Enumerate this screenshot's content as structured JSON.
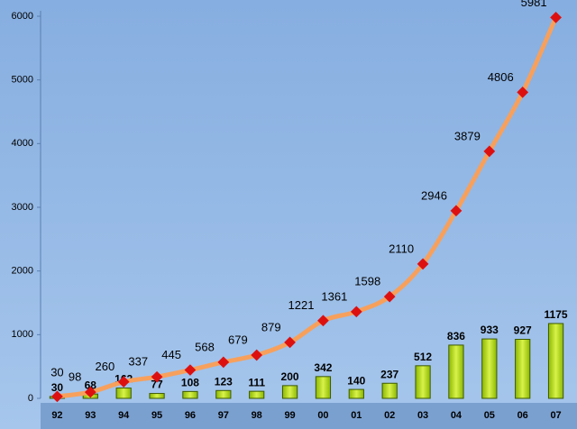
{
  "chart_data": {
    "type": "combo",
    "categories": [
      "92",
      "93",
      "94",
      "95",
      "96",
      "97",
      "98",
      "99",
      "00",
      "01",
      "02",
      "03",
      "04",
      "05",
      "06",
      "07"
    ],
    "series": [
      {
        "type": "bar",
        "color": "#b4dc1e",
        "values": [
          30,
          68,
          162,
          77,
          108,
          123,
          111,
          200,
          342,
          140,
          237,
          512,
          836,
          933,
          927,
          1175
        ]
      },
      {
        "type": "line",
        "color": "#f7a05c",
        "marker_color": "#dd1010",
        "values": [
          30,
          98,
          260,
          337,
          445,
          568,
          679,
          879,
          1221,
          1361,
          1598,
          2110,
          2946,
          3879,
          4806,
          5981
        ]
      }
    ],
    "ylim": [
      0,
      6000
    ],
    "yticks": [
      0,
      1000,
      2000,
      3000,
      4000,
      5000,
      6000
    ],
    "grid": false
  }
}
